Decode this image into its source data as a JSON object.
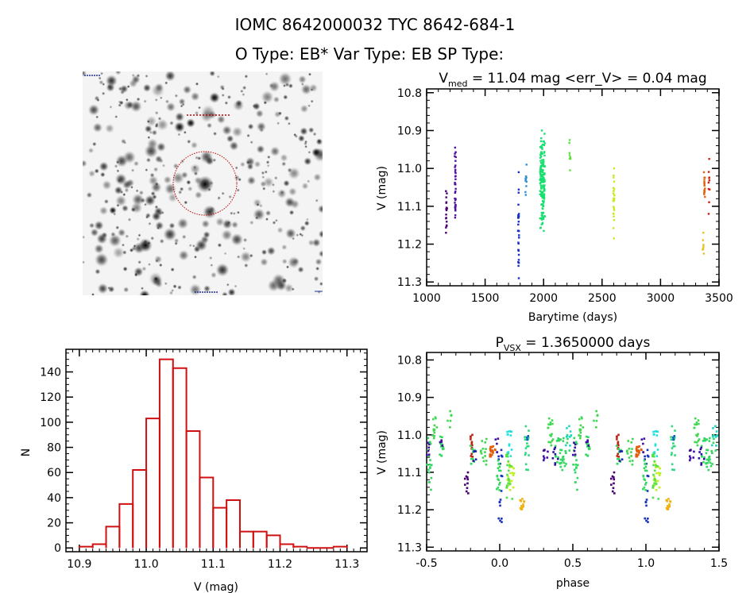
{
  "header": {
    "title_line1": "IOMC 8642000032    TYC 8642-684-1",
    "title_line2": "O Type: EB*  Var Type: EB  SP Type:"
  },
  "finder_image": {
    "description_labels": [],
    "circle_color": "#c00000"
  },
  "chart_data": [
    {
      "type": "scatter",
      "panel": "light-curve",
      "title_prefix": "V",
      "title_sub": "med",
      "title_rest": " = 11.04 mag <err_V> = 0.04 mag",
      "xlabel": "Barytime (days)",
      "ylabel": "V (mag)",
      "xlim": [
        1000,
        3500
      ],
      "ylim": [
        10.79,
        11.31
      ],
      "y_inverted": true,
      "xticks": [
        1000,
        1500,
        2000,
        2500,
        3000,
        3500
      ],
      "xtick_labels": [
        "1000",
        "1500",
        "2000",
        "2500",
        "3000",
        "3500"
      ],
      "yticks": [
        10.8,
        10.9,
        11.0,
        11.1,
        11.2,
        11.3
      ],
      "ytick_labels": [
        "10.8",
        "10.9",
        "11.0",
        "11.1",
        "11.2",
        "11.3"
      ],
      "groups": [
        {
          "t": 1170,
          "v_range": [
            11.06,
            11.17
          ],
          "n": 18,
          "color": "#4b0070"
        },
        {
          "t": 1245,
          "v_range": [
            10.945,
            11.13
          ],
          "n": 35,
          "color": "#5010a0"
        },
        {
          "t": 1785,
          "v_range": [
            11.01,
            11.29
          ],
          "n": 30,
          "color": "#1830c0"
        },
        {
          "t": 1850,
          "v_range": [
            10.99,
            11.07
          ],
          "n": 10,
          "color": "#2f8fd8"
        },
        {
          "t": 1990,
          "v_range": [
            10.9,
            11.165
          ],
          "n": 160,
          "color": "#18e070"
        },
        {
          "t": 2225,
          "v_range": [
            10.925,
            11.005
          ],
          "n": 10,
          "color": "#60e040"
        },
        {
          "t": 2600,
          "v_range": [
            11.0,
            11.185
          ],
          "n": 25,
          "color": "#c8e820"
        },
        {
          "t": 3365,
          "v_range": [
            11.17,
            11.225
          ],
          "n": 8,
          "color": "#e8c020"
        },
        {
          "t": 3375,
          "v_range": [
            11.01,
            11.075
          ],
          "n": 15,
          "color": "#e06010"
        },
        {
          "t": 3415,
          "v_range": [
            10.975,
            11.12
          ],
          "n": 10,
          "color": "#d02010"
        }
      ]
    },
    {
      "type": "bar",
      "panel": "histogram",
      "xlabel": "V (mag)",
      "ylabel": "N",
      "xlim": [
        10.88,
        11.33
      ],
      "ylim": [
        -3,
        158
      ],
      "bin_width": 0.02,
      "bin_starts": [
        10.9,
        10.92,
        10.94,
        10.96,
        10.98,
        11.0,
        11.02,
        11.04,
        11.06,
        11.08,
        11.1,
        11.12,
        11.14,
        11.16,
        11.18,
        11.2,
        11.22,
        11.24,
        11.26,
        11.28
      ],
      "values": [
        1,
        3,
        17,
        35,
        62,
        103,
        150,
        143,
        93,
        56,
        32,
        38,
        13,
        13,
        10,
        3,
        1,
        0,
        0,
        1
      ],
      "bar_color": "#d01010",
      "xticks": [
        10.9,
        11.0,
        11.1,
        11.2,
        11.3
      ],
      "xtick_labels": [
        "10.9",
        "11.0",
        "11.1",
        "11.2",
        "11.3"
      ],
      "yticks": [
        0,
        20,
        40,
        60,
        80,
        100,
        120,
        140
      ],
      "ytick_labels": [
        "0",
        "20",
        "40",
        "60",
        "80",
        "100",
        "120",
        "140"
      ]
    },
    {
      "type": "scatter",
      "panel": "phased-light-curve",
      "title_prefix": "P",
      "title_sub": "VSX",
      "title_rest": " = 1.3650000 days",
      "xlabel": "phase",
      "ylabel": "V (mag)",
      "xlim": [
        -0.5,
        1.5
      ],
      "ylim": [
        10.78,
        11.31
      ],
      "y_inverted": true,
      "period_repeat": 1.0,
      "xticks": [
        -0.5,
        0.0,
        0.5,
        1.0,
        1.5
      ],
      "xtick_labels": [
        "-0.5",
        "0.0",
        "0.5",
        "1.0",
        "1.5"
      ],
      "yticks": [
        10.8,
        10.9,
        11.0,
        11.1,
        11.2,
        11.3
      ],
      "ytick_labels": [
        "10.8",
        "10.9",
        "11.0",
        "11.1",
        "11.2",
        "11.3"
      ],
      "clusters": [
        {
          "phase": [
            -0.5,
            -0.46
          ],
          "v_range": [
            11.0,
            11.15
          ],
          "n": 18,
          "color": "#30d860"
        },
        {
          "phase": [
            -0.5,
            -0.48
          ],
          "v_range": [
            11.02,
            11.06
          ],
          "n": 6,
          "color": "#4010a0"
        },
        {
          "phase": [
            -0.46,
            -0.43
          ],
          "v_range": [
            10.95,
            11.02
          ],
          "n": 12,
          "color": "#40d850"
        },
        {
          "phase": [
            -0.41,
            -0.38
          ],
          "v_range": [
            11.0,
            11.06
          ],
          "n": 12,
          "color": "#30d860"
        },
        {
          "phase": [
            -0.41,
            -0.39
          ],
          "v_range": [
            11.0,
            11.03
          ],
          "n": 5,
          "color": "#4010a0"
        },
        {
          "phase": [
            -0.36,
            -0.33
          ],
          "v_range": [
            10.93,
            10.98
          ],
          "n": 6,
          "color": "#40d850"
        },
        {
          "phase": [
            -0.24,
            -0.21
          ],
          "v_range": [
            11.1,
            11.16
          ],
          "n": 10,
          "color": "#4b0070"
        },
        {
          "phase": [
            -0.2,
            -0.18
          ],
          "v_range": [
            11.0,
            11.07
          ],
          "n": 14,
          "color": "#c02010"
        },
        {
          "phase": [
            -0.2,
            -0.17
          ],
          "v_range": [
            11.02,
            11.09
          ],
          "n": 10,
          "color": "#30d860"
        },
        {
          "phase": [
            -0.18,
            -0.16
          ],
          "v_range": [
            11.04,
            11.08
          ],
          "n": 5,
          "color": "#2020b0"
        },
        {
          "phase": [
            -0.13,
            -0.09
          ],
          "v_range": [
            11.0,
            11.08
          ],
          "n": 14,
          "color": "#40d850"
        },
        {
          "phase": [
            -0.07,
            -0.03
          ],
          "v_range": [
            11.03,
            11.06
          ],
          "n": 22,
          "color": "#e06010"
        },
        {
          "phase": [
            -0.01,
            0.02
          ],
          "v_range": [
            11.03,
            11.24
          ],
          "n": 18,
          "color": "#1830c0"
        },
        {
          "phase": [
            -0.02,
            0.01
          ],
          "v_range": [
            11.06,
            11.15
          ],
          "n": 16,
          "color": "#30d860"
        },
        {
          "phase": [
            -0.03,
            0.0
          ],
          "v_range": [
            11.01,
            11.05
          ],
          "n": 5,
          "color": "#4010a0"
        },
        {
          "phase": [
            0.05,
            0.09
          ],
          "v_range": [
            10.99,
            11.06
          ],
          "n": 14,
          "color": "#20e0e0"
        },
        {
          "phase": [
            0.05,
            0.1
          ],
          "v_range": [
            11.07,
            11.15
          ],
          "n": 22,
          "color": "#c0f020"
        },
        {
          "phase": [
            0.04,
            0.1
          ],
          "v_range": [
            11.05,
            11.18
          ],
          "n": 18,
          "color": "#50e050"
        },
        {
          "phase": [
            0.14,
            0.17
          ],
          "v_range": [
            11.17,
            11.2
          ],
          "n": 14,
          "color": "#f0b010"
        },
        {
          "phase": [
            0.17,
            0.2
          ],
          "v_range": [
            10.97,
            11.1
          ],
          "n": 16,
          "color": "#30d880"
        },
        {
          "phase": [
            0.18,
            0.2
          ],
          "v_range": [
            11.0,
            11.03
          ],
          "n": 4,
          "color": "#1060c0"
        },
        {
          "phase": [
            0.3,
            0.33
          ],
          "v_range": [
            11.04,
            11.07
          ],
          "n": 8,
          "color": "#4010a0"
        },
        {
          "phase": [
            0.33,
            0.37
          ],
          "v_range": [
            10.95,
            11.03
          ],
          "n": 16,
          "color": "#40d850"
        },
        {
          "phase": [
            0.38,
            0.48
          ],
          "v_range": [
            11.0,
            11.1
          ],
          "n": 36,
          "color": "#30d860"
        },
        {
          "phase": [
            0.36,
            0.4
          ],
          "v_range": [
            11.03,
            11.08
          ],
          "n": 8,
          "color": "#3010a0"
        },
        {
          "phase": [
            0.45,
            0.49
          ],
          "v_range": [
            10.97,
            11.03
          ],
          "n": 10,
          "color": "#20d8c0"
        }
      ]
    }
  ]
}
